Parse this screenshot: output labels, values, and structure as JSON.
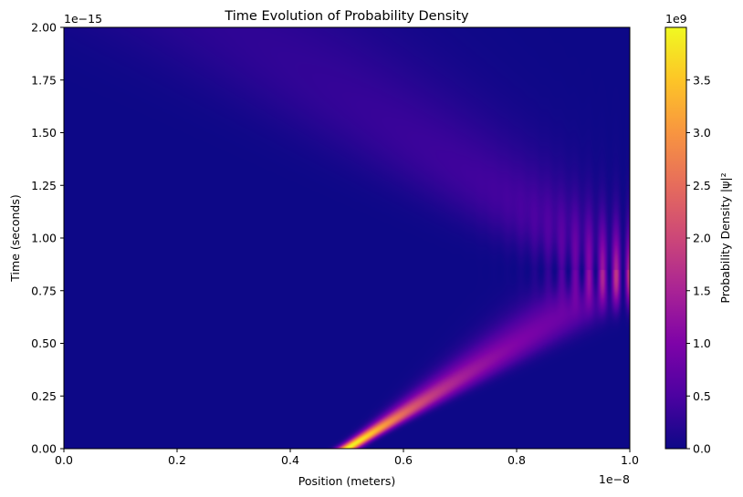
{
  "chart_data": {
    "type": "heatmap",
    "title": "Time Evolution of Probability Density",
    "xlabel": "Position (meters)",
    "ylabel": "Time (seconds)",
    "x_offset_label": "1e−8",
    "y_offset_label": "1e−15",
    "xlim": [
      0.0,
      1.0
    ],
    "ylim": [
      0.0,
      2.0
    ],
    "x_ticks": [
      0.0,
      0.2,
      0.4,
      0.6,
      0.8,
      1.0
    ],
    "x_tick_labels": [
      "0.0",
      "0.2",
      "0.4",
      "0.6",
      "0.8",
      "1.0"
    ],
    "y_ticks": [
      0.0,
      0.25,
      0.5,
      0.75,
      1.0,
      1.25,
      1.5,
      1.75,
      2.0
    ],
    "y_tick_labels": [
      "0.00",
      "0.25",
      "0.50",
      "0.75",
      "1.00",
      "1.25",
      "1.50",
      "1.75",
      "2.00"
    ],
    "colorbar": {
      "label": "Probability Density |ψ|²",
      "offset_label": "1e9",
      "colormap": "plasma",
      "range": [
        0.0,
        4.0
      ],
      "ticks": [
        0.0,
        0.5,
        1.0,
        1.5,
        2.0,
        2.5,
        3.0,
        3.5
      ],
      "tick_labels": [
        "0.0",
        "0.5",
        "1.0",
        "1.5",
        "2.0",
        "2.5",
        "3.0",
        "3.5"
      ]
    },
    "wave_packet": {
      "start_position": 0.5,
      "wall_position": 1.0,
      "reflection_time": 0.85,
      "initial_peak": 4.0,
      "incoming_path": [
        [
          0.5,
          0.0
        ],
        [
          0.6,
          0.17
        ],
        [
          0.7,
          0.34
        ],
        [
          0.8,
          0.51
        ],
        [
          0.9,
          0.68
        ],
        [
          1.0,
          0.85
        ]
      ],
      "reflected_path": [
        [
          1.0,
          0.85
        ],
        [
          0.9,
          1.02
        ],
        [
          0.8,
          1.19
        ],
        [
          0.7,
          1.36
        ],
        [
          0.6,
          1.53
        ],
        [
          0.5,
          1.7
        ],
        [
          0.4,
          1.87
        ],
        [
          0.33,
          2.0
        ]
      ]
    },
    "grid": false,
    "legend": "none"
  }
}
